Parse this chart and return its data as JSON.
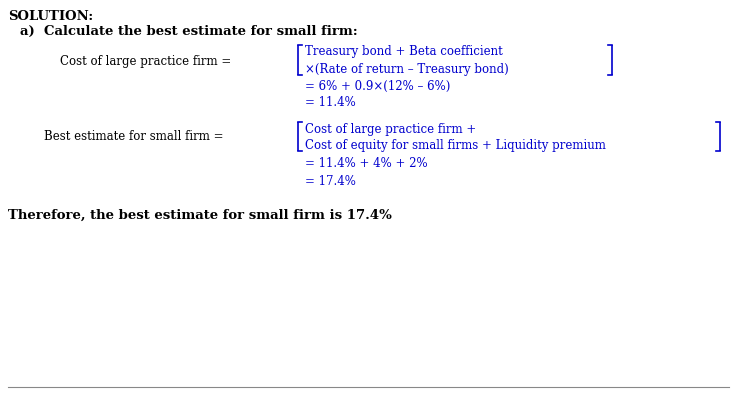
{
  "bg_color": "#ffffff",
  "text_color": "#000000",
  "blue_color": "#0000cd",
  "title": "SOLUTION:",
  "subtitle": "a)  Calculate the best estimate for small firm:",
  "formula_label1": "Cost of large practice firm =",
  "bracket_line1_top": "Treasury bond + Beta coefficient",
  "bracket_line1_bot": "×(Rate of return – Treasury bond)",
  "calc_line1": "= 6% + 0.9×(12% – 6%)",
  "calc_line2": "= 11.4%",
  "formula_label2": "Best estimate for small firm =",
  "bracket_line2_top": "Cost of large practice firm +",
  "bracket_line2_bot": "Cost of equity for small firms + Liquidity premium",
  "calc_line3": "= 11.4% + 4% + 2%",
  "calc_line4": "= 17.4%",
  "conclusion": "Therefore, the best estimate for small firm is 17.4%",
  "fig_width": 7.37,
  "fig_height": 4.02,
  "dpi": 100
}
